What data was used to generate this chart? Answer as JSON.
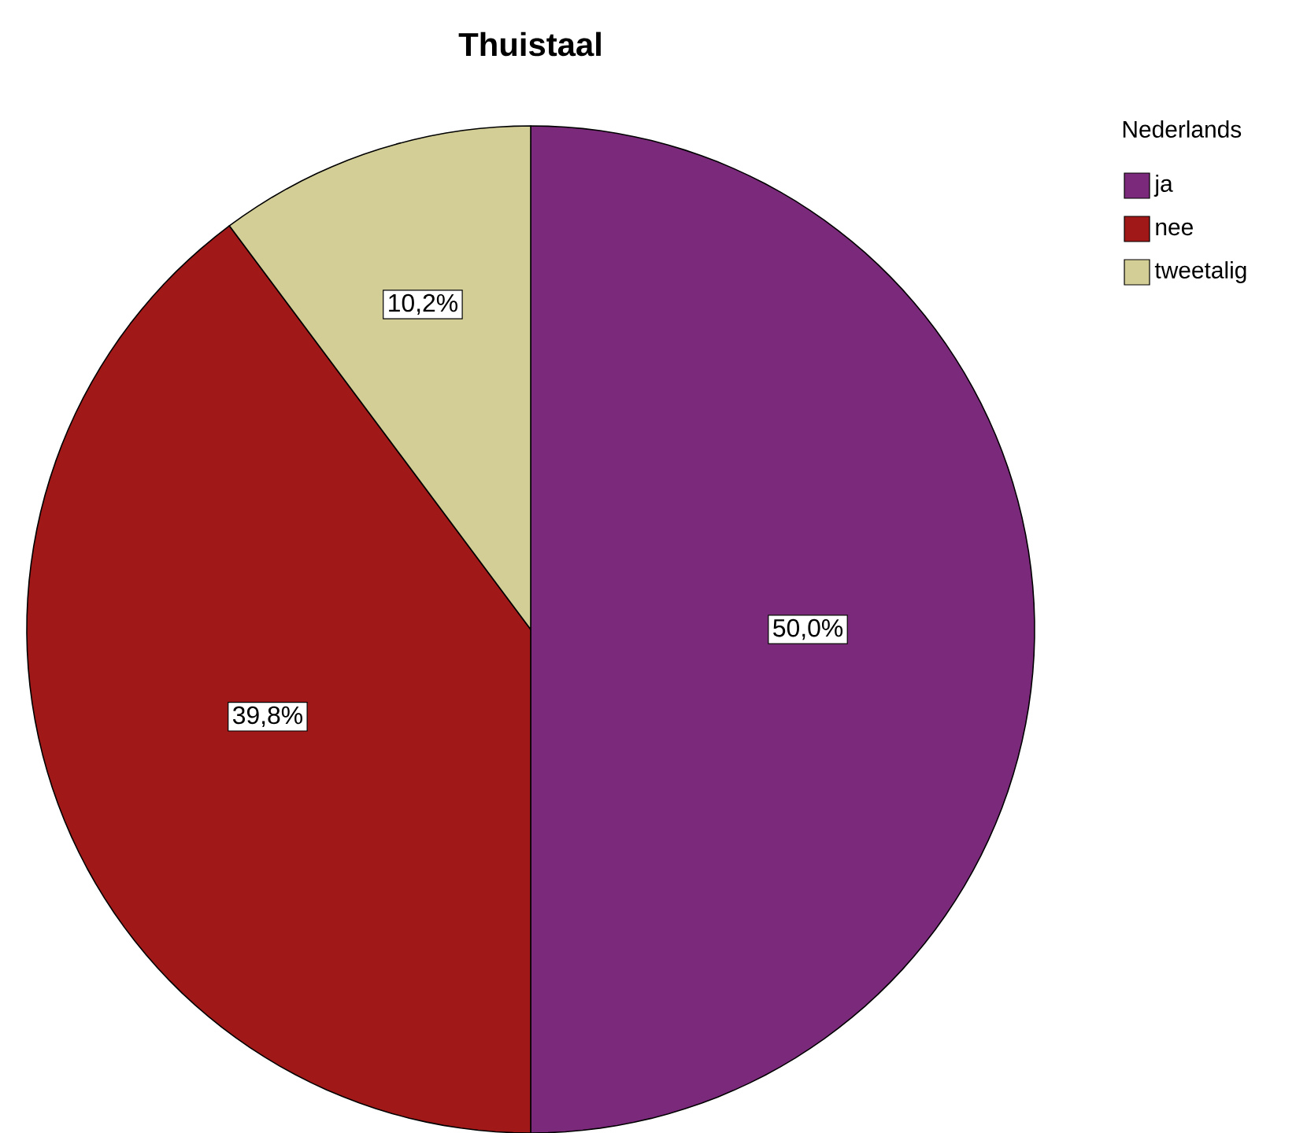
{
  "chart_data": {
    "type": "pie",
    "title": "Thuistaal",
    "legend_title": "Nederlands",
    "legend": "top right",
    "categories": [
      "ja",
      "nee",
      "tweetalig"
    ],
    "values": [
      50.0,
      39.8,
      10.2
    ],
    "value_labels": [
      "50,0%",
      "39,8%",
      "10,2%"
    ],
    "colors": [
      "#7b2a7b",
      "#a01818",
      "#d3cd96"
    ]
  }
}
